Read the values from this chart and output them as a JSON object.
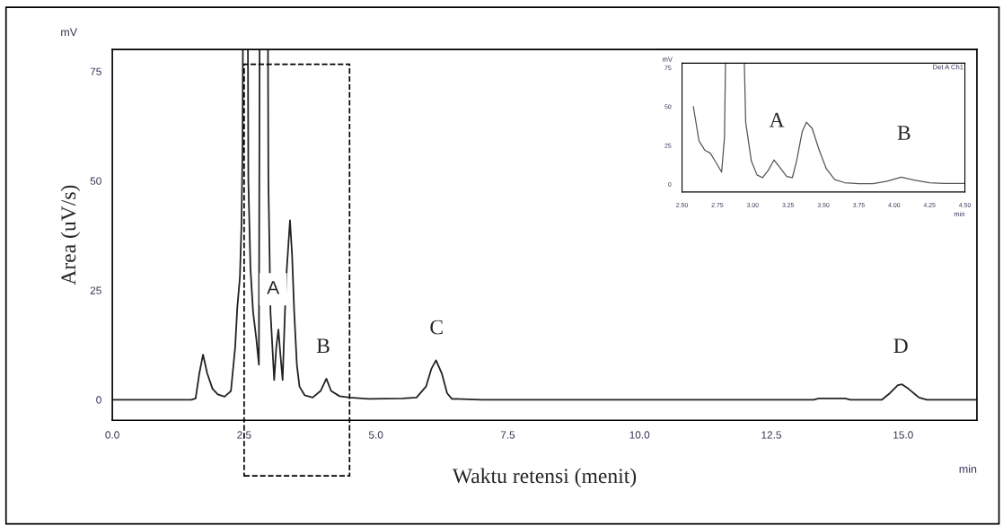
{
  "chart_data": [
    {
      "type": "line",
      "xlabel": "Waktu retensi (menit)",
      "ylabel": "Area (uV/s)",
      "xlim": [
        0,
        16.4
      ],
      "ylim": [
        -4.7,
        80
      ],
      "xticks": [
        {
          "value": 0,
          "label": "0.0"
        },
        {
          "value": 2.5,
          "label": "2.5"
        },
        {
          "value": 5,
          "label": "5.0"
        },
        {
          "value": 7.5,
          "label": "7.5"
        },
        {
          "value": 10,
          "label": "10.0"
        },
        {
          "value": 12.5,
          "label": "12.5"
        },
        {
          "value": 15,
          "label": "15.0"
        }
      ],
      "yticks": [
        0,
        25,
        50,
        75
      ],
      "grid": false,
      "series": [
        {
          "color": "#222222",
          "x": [
            0,
            1.5,
            1.58,
            1.65,
            1.72,
            1.8,
            1.9,
            2.0,
            2.13,
            2.25,
            2.33,
            2.37,
            2.42,
            2.45,
            2.47,
            2.5,
            2.55,
            2.58,
            2.62,
            2.67,
            2.73,
            2.78,
            2.81,
            2.93,
            2.96,
            3.0,
            3.07,
            3.11,
            3.15,
            3.19,
            3.23,
            3.28,
            3.31,
            3.37,
            3.41,
            3.45,
            3.5,
            3.55,
            3.65,
            3.8,
            3.95,
            4.06,
            4.15,
            4.31,
            4.5,
            4.86,
            5.5,
            5.77,
            5.95,
            6.05,
            6.14,
            6.25,
            6.35,
            6.44,
            7,
            13.3,
            13.4,
            13.9,
            14.0,
            14.6,
            14.75,
            14.9,
            14.98,
            15.1,
            15.3,
            15.45,
            16.4
          ],
          "values": [
            0,
            0,
            0.3,
            6,
            10.3,
            6,
            2.5,
            1.2,
            0.7,
            2,
            12,
            21,
            28,
            40,
            58,
            null,
            null,
            50,
            30,
            20,
            14,
            8,
            null,
            null,
            50,
            20,
            4.5,
            12,
            16,
            10,
            4.5,
            22,
            30,
            41,
            33,
            20,
            8,
            3,
            1,
            0.5,
            2,
            4.8,
            2,
            0.8,
            0.5,
            0.2,
            0.3,
            0.5,
            3,
            7,
            9,
            6,
            1.5,
            0.2,
            0,
            0,
            0.3,
            0.3,
            0,
            0,
            1.5,
            3.3,
            3.5,
            2.5,
            0.5,
            0,
            0
          ]
        }
      ],
      "annotations": [
        "A",
        "B",
        "C",
        "D",
        "mV",
        "min"
      ]
    },
    {
      "type": "line",
      "xlim": [
        2.5,
        4.5
      ],
      "ylim": [
        -5,
        78
      ],
      "xticks": [
        {
          "value": 2.5,
          "label": "2.50"
        },
        {
          "value": 2.75,
          "label": "2.75"
        },
        {
          "value": 3.0,
          "label": "3.00"
        },
        {
          "value": 3.25,
          "label": "3.25"
        },
        {
          "value": 3.5,
          "label": "3.50"
        },
        {
          "value": 3.75,
          "label": "3.75"
        },
        {
          "value": 4.0,
          "label": "4.00"
        },
        {
          "value": 4.25,
          "label": "4.25"
        },
        {
          "value": 4.5,
          "label": "4.50"
        }
      ],
      "yticks": [
        0,
        25,
        50,
        75
      ],
      "grid": false,
      "series": [
        {
          "color": "#555555",
          "x": [
            2.58,
            2.62,
            2.66,
            2.7,
            2.74,
            2.78,
            2.8,
            2.82,
            2.92,
            2.95,
            2.99,
            3.03,
            3.07,
            3.11,
            3.15,
            3.19,
            3.24,
            3.28,
            3.31,
            3.35,
            3.38,
            3.42,
            3.47,
            3.52,
            3.58,
            3.65,
            3.75,
            3.85,
            3.95,
            4.05,
            4.15,
            4.25,
            4.35,
            4.5
          ],
          "values": [
            50,
            28,
            22,
            20,
            14,
            7.8,
            30,
            null,
            null,
            40,
            15,
            6,
            4.2,
            9,
            15.6,
            11,
            5,
            4.2,
            15,
            34,
            40,
            36,
            22,
            10,
            3,
            1,
            0.3,
            0.3,
            2,
            4.5,
            2.5,
            1,
            0.5,
            0.5
          ]
        }
      ],
      "annotations": [
        "A",
        "B",
        "mV",
        "min",
        "Det A Ch1"
      ]
    }
  ]
}
